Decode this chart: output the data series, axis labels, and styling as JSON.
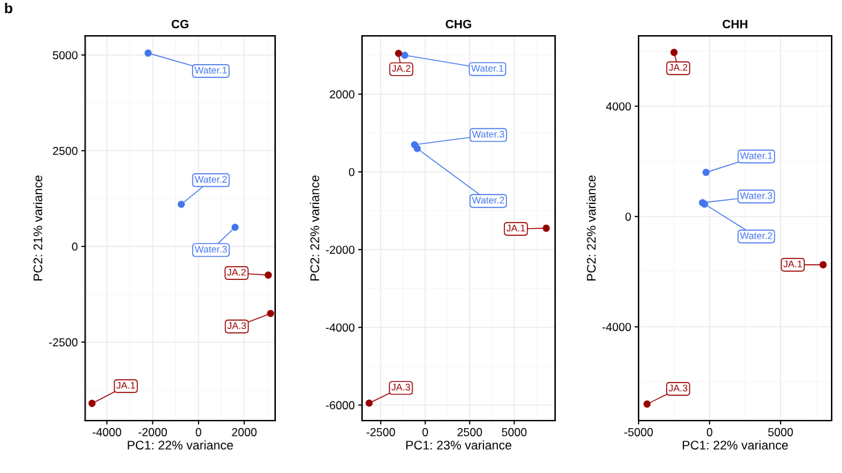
{
  "chart_data": [
    {
      "type": "scatter",
      "title": "CG",
      "xlabel": "PC1: 22% variance",
      "ylabel": "PC2: 21% variance",
      "xlim": [
        -4950,
        3350
      ],
      "ylim": [
        -4550,
        5500
      ],
      "xticks": [
        -4000,
        -2000,
        0,
        2000
      ],
      "yticks": [
        -2500,
        0,
        2500,
        5000
      ],
      "grid": true,
      "marker": "circle",
      "series": [
        {
          "color": "#4477ee",
          "x": [
            -2200,
            -750,
            1600
          ],
          "values": [
            5050,
            1100,
            500
          ]
        },
        {
          "color": "#990000",
          "x": [
            3050,
            3150,
            -4650
          ],
          "values": [
            -750,
            -1750,
            -4100
          ]
        }
      ],
      "annotations": [
        "b",
        {
          "text": "Water.1",
          "x": -2200,
          "y": 5050
        },
        {
          "text": "Water.2",
          "x": -750,
          "y": 1100
        },
        {
          "text": "Water.3",
          "x": 1600,
          "y": 500
        },
        {
          "text": "JA.2",
          "x": 3050,
          "y": -750
        },
        {
          "text": "JA.3",
          "x": 3150,
          "y": -1750
        },
        {
          "text": "JA.1",
          "x": -4650,
          "y": -4100
        }
      ]
    },
    {
      "type": "scatter",
      "title": "CHG",
      "xlabel": "PC1: 23% variance",
      "ylabel": "PC2: 22% variance",
      "xlim": [
        -3550,
        7300
      ],
      "ylim": [
        -6400,
        3500
      ],
      "xticks": [
        -2500,
        0,
        2500,
        5000
      ],
      "yticks": [
        -6000,
        -4000,
        -2000,
        0,
        2000
      ],
      "grid": true,
      "marker": "circle",
      "series": [
        {
          "color": "#4477ee",
          "x": [
            -1150,
            -600,
            -450
          ],
          "values": [
            3000,
            700,
            600
          ]
        },
        {
          "color": "#990000",
          "x": [
            -1500,
            6800,
            -3150
          ],
          "values": [
            3050,
            -1450,
            -5950
          ]
        }
      ],
      "annotations": [
        {
          "text": "JA.2",
          "x": -1500,
          "y": 3050
        },
        {
          "text": "Water.1",
          "x": -1150,
          "y": 3000
        },
        {
          "text": "Water.3",
          "x": -600,
          "y": 700
        },
        {
          "text": "Water.2",
          "x": -450,
          "y": 600
        },
        {
          "text": "JA.1",
          "x": 6800,
          "y": -1450
        },
        {
          "text": "JA.3",
          "x": -3150,
          "y": -5950
        }
      ]
    },
    {
      "type": "scatter",
      "title": "CHH",
      "xlabel": "PC1: 22% variance",
      "ylabel": "PC2: 22% variance",
      "xlim": [
        -5000,
        8600
      ],
      "ylim": [
        -7400,
        6550
      ],
      "xticks": [
        -5000,
        0,
        5000
      ],
      "yticks": [
        -4000,
        0,
        4000
      ],
      "grid": true,
      "marker": "circle",
      "series": [
        {
          "color": "#4477ee",
          "x": [
            -250,
            -500,
            -350
          ],
          "values": [
            1600,
            500,
            450
          ]
        },
        {
          "color": "#990000",
          "x": [
            -2500,
            8000,
            -4400
          ],
          "values": [
            5950,
            -1750,
            -6800
          ]
        }
      ],
      "annotations": [
        {
          "text": "JA.2",
          "x": -2500,
          "y": 5950
        },
        {
          "text": "Water.1",
          "x": -250,
          "y": 1600
        },
        {
          "text": "Water.3",
          "x": -500,
          "y": 500
        },
        {
          "text": "Water.2",
          "x": -350,
          "y": 450
        },
        {
          "text": "JA.1",
          "x": 8000,
          "y": -1750
        },
        {
          "text": "JA.3",
          "x": -4400,
          "y": -6800
        }
      ]
    }
  ]
}
